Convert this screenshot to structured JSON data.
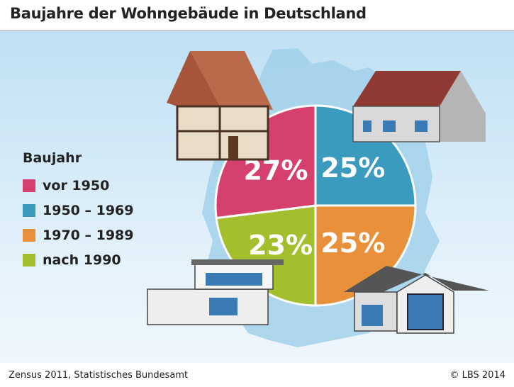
{
  "title": "Baujahre der Wohngebäude in Deutschland",
  "footer": {
    "source": "Zensus 2011, Statistisches Bundesamt",
    "copyright": "© LBS 2014"
  },
  "chart_data": {
    "type": "pie",
    "title": "Baujahre der Wohngebäude in Deutschland",
    "legend_title": "Baujahr",
    "legend_placement": "left",
    "slices": [
      {
        "label": "vor 1950",
        "value": 27,
        "display": "27%",
        "color": "#d6406f"
      },
      {
        "label": "1950 – 1969",
        "value": 25,
        "display": "25%",
        "color": "#3a9bbf"
      },
      {
        "label": "1970 – 1989",
        "value": 25,
        "display": "25%",
        "color": "#e8913a"
      },
      {
        "label": "nach 1990",
        "value": 23,
        "display": "23%",
        "color": "#a3bf2e"
      }
    ]
  }
}
